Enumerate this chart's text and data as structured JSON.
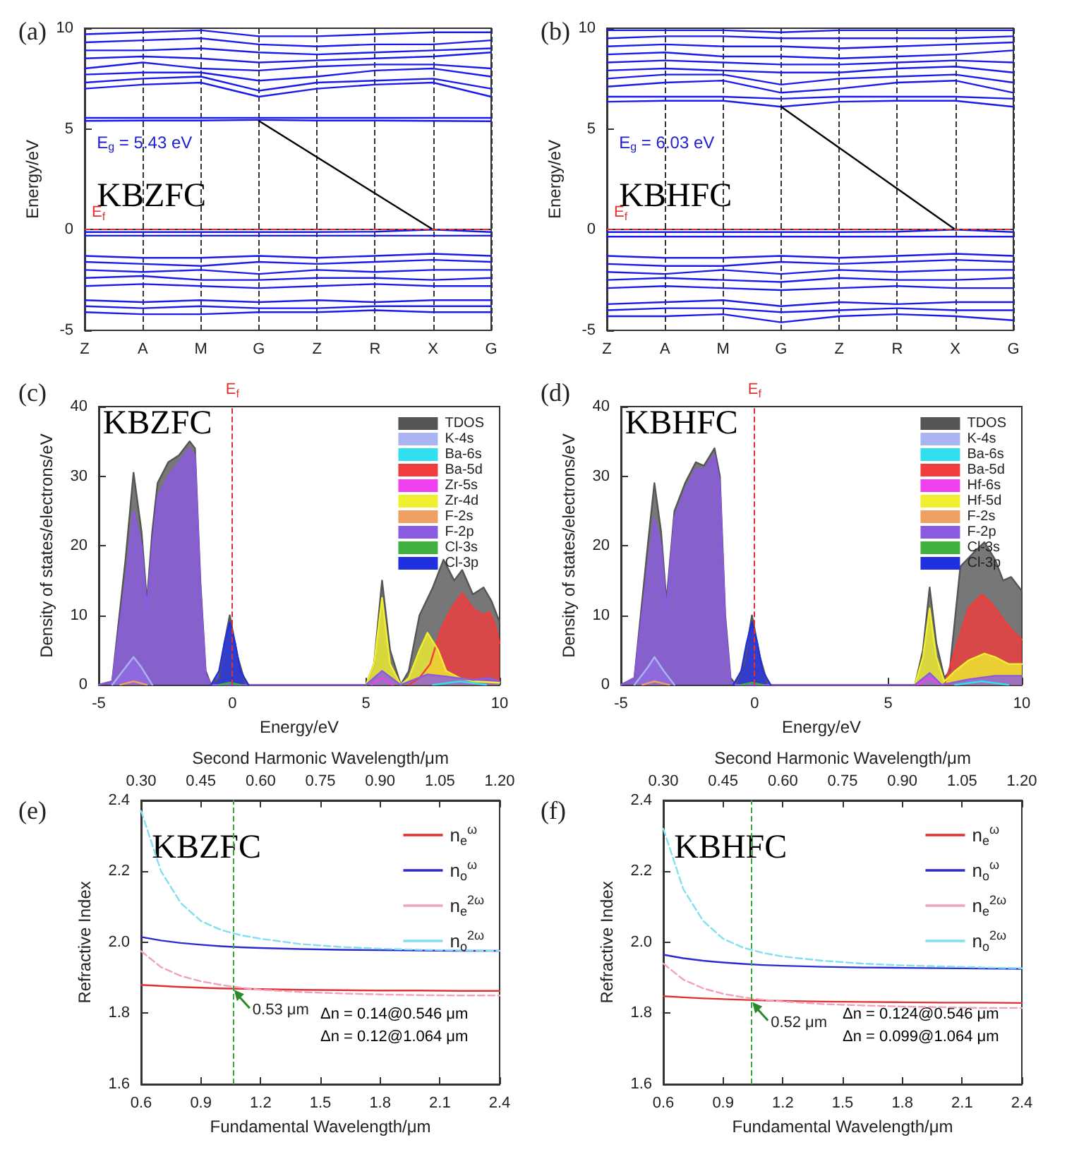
{
  "chart_data": [
    {
      "type": "line",
      "title": "(a)",
      "ylabel": "Energy/eV",
      "ylim": [
        -5,
        10
      ],
      "yticks": [
        -5,
        0,
        5,
        10
      ],
      "categories": [
        "Z",
        "A",
        "M",
        "G",
        "Z",
        "R",
        "X",
        "G"
      ],
      "grid": "x",
      "legend": false,
      "marker": "none",
      "annotations": [
        "E$_{g}$ = 5.43 eV",
        "KBZFC"
      ],
      "ref_lines": [
        {
          "axis": "y",
          "value": 0,
          "label": "E$_{f}$",
          "color": "#e03030",
          "line_style": "dashed"
        }
      ],
      "series": [
        {
          "color": "#1a1aee",
          "values": [
            5.4,
            5.42,
            5.42,
            5.45,
            5.42,
            5.42,
            5.4,
            5.38
          ]
        },
        {
          "color": "#1a1aee",
          "values": [
            5.55,
            5.55,
            5.55,
            5.55,
            5.55,
            5.55,
            5.55,
            5.55
          ]
        },
        {
          "color": "#1a1aee",
          "values": [
            7.0,
            7.2,
            7.3,
            6.6,
            7.0,
            7.2,
            7.3,
            6.6
          ]
        },
        {
          "color": "#1a1aee",
          "values": [
            7.3,
            7.5,
            7.6,
            6.9,
            7.3,
            7.4,
            7.5,
            7.0
          ]
        },
        {
          "color": "#1a1aee",
          "values": [
            7.7,
            7.8,
            7.8,
            7.4,
            7.6,
            7.9,
            8.0,
            7.6
          ]
        },
        {
          "color": "#1a1aee",
          "values": [
            8.0,
            8.3,
            8.0,
            7.9,
            8.1,
            8.2,
            8.2,
            8.0
          ]
        },
        {
          "color": "#1a1aee",
          "values": [
            8.5,
            8.6,
            8.5,
            8.3,
            8.4,
            8.5,
            8.6,
            8.8
          ]
        },
        {
          "color": "#1a1aee",
          "values": [
            8.9,
            8.9,
            9.0,
            8.8,
            8.7,
            8.8,
            8.9,
            9.0
          ]
        },
        {
          "color": "#1a1aee",
          "values": [
            9.3,
            9.4,
            9.5,
            9.2,
            9.1,
            9.2,
            9.2,
            9.4
          ]
        },
        {
          "color": "#1a1aee",
          "values": [
            9.7,
            9.8,
            9.9,
            9.6,
            9.6,
            9.7,
            9.8,
            9.8
          ]
        },
        {
          "color": "#1a1aee",
          "values": [
            -0.12,
            -0.12,
            -0.12,
            -0.12,
            -0.12,
            -0.1,
            0,
            -0.12
          ]
        },
        {
          "color": "#1a1aee",
          "values": [
            -0.3,
            -0.3,
            -0.3,
            -0.3,
            -0.3,
            -0.3,
            -0.3,
            -0.3
          ]
        },
        {
          "color": "#1a1aee",
          "values": [
            -1.3,
            -1.4,
            -1.4,
            -1.3,
            -1.4,
            -1.3,
            -1.2,
            -1.3
          ]
        },
        {
          "color": "#1a1aee",
          "values": [
            -1.6,
            -1.7,
            -1.8,
            -1.6,
            -1.7,
            -1.6,
            -1.5,
            -1.6
          ]
        },
        {
          "color": "#1a1aee",
          "values": [
            -2.0,
            -2.1,
            -2.0,
            -2.2,
            -2.0,
            -2.1,
            -2.0,
            -2.0
          ]
        },
        {
          "color": "#1a1aee",
          "values": [
            -2.4,
            -2.3,
            -2.5,
            -2.5,
            -2.4,
            -2.4,
            -2.5,
            -2.4
          ]
        },
        {
          "color": "#1a1aee",
          "values": [
            -2.8,
            -2.7,
            -2.8,
            -2.9,
            -2.8,
            -2.7,
            -2.8,
            -2.8
          ]
        },
        {
          "color": "#1a1aee",
          "values": [
            -3.5,
            -3.6,
            -3.5,
            -3.6,
            -3.5,
            -3.6,
            -3.5,
            -3.5
          ]
        },
        {
          "color": "#1a1aee",
          "values": [
            -3.8,
            -3.9,
            -3.8,
            -3.9,
            -3.9,
            -3.8,
            -3.8,
            -3.8
          ]
        },
        {
          "color": "#1a1aee",
          "values": [
            -4.1,
            -4.2,
            -4.2,
            -4.1,
            -4.1,
            -4.0,
            -4.1,
            -4.1
          ]
        },
        {
          "color": "#000000",
          "x": [
            "G",
            "X"
          ],
          "values": [
            5.4,
            0
          ]
        }
      ]
    },
    {
      "type": "line",
      "title": "(b)",
      "ylabel": "Energy/eV",
      "ylim": [
        -5,
        10
      ],
      "yticks": [
        -5,
        0,
        5,
        10
      ],
      "categories": [
        "Z",
        "A",
        "M",
        "G",
        "Z",
        "R",
        "X",
        "G"
      ],
      "grid": "x",
      "legend": false,
      "marker": "none",
      "annotations": [
        "E$_{g}$ = 6.03 eV",
        "KBHFC"
      ],
      "ref_lines": [
        {
          "axis": "y",
          "value": 0,
          "label": "E$_{f}$",
          "color": "#e03030",
          "line_style": "dashed"
        }
      ],
      "series": [
        {
          "color": "#1a1aee",
          "values": [
            6.35,
            6.4,
            6.4,
            6.1,
            6.35,
            6.4,
            6.4,
            6.1
          ]
        },
        {
          "color": "#1a1aee",
          "values": [
            6.6,
            6.6,
            6.6,
            6.5,
            6.6,
            6.6,
            6.6,
            6.5
          ]
        },
        {
          "color": "#1a1aee",
          "values": [
            7.1,
            7.3,
            7.4,
            6.8,
            7.0,
            7.3,
            7.4,
            6.8
          ]
        },
        {
          "color": "#1a1aee",
          "values": [
            7.5,
            7.7,
            7.7,
            7.2,
            7.5,
            7.6,
            7.7,
            7.3
          ]
        },
        {
          "color": "#1a1aee",
          "values": [
            7.9,
            8.0,
            7.9,
            7.8,
            7.8,
            8.0,
            8.1,
            7.8
          ]
        },
        {
          "color": "#1a1aee",
          "values": [
            8.3,
            8.4,
            8.3,
            8.2,
            8.2,
            8.3,
            8.4,
            8.3
          ]
        },
        {
          "color": "#1a1aee",
          "values": [
            8.7,
            8.8,
            8.6,
            8.6,
            8.5,
            8.6,
            8.7,
            8.9
          ]
        },
        {
          "color": "#1a1aee",
          "values": [
            9.1,
            9.2,
            9.1,
            9.1,
            9.0,
            9.1,
            9.2,
            9.3
          ]
        },
        {
          "color": "#1a1aee",
          "values": [
            9.5,
            9.6,
            9.6,
            9.5,
            9.5,
            9.5,
            9.5,
            9.6
          ]
        },
        {
          "color": "#1a1aee",
          "values": [
            9.9,
            9.9,
            9.9,
            9.8,
            9.9,
            9.9,
            9.9,
            9.9
          ]
        },
        {
          "color": "#1a1aee",
          "values": [
            -0.12,
            -0.12,
            -0.12,
            -0.12,
            -0.12,
            -0.1,
            0,
            -0.12
          ]
        },
        {
          "color": "#1a1aee",
          "values": [
            -0.35,
            -0.35,
            -0.35,
            -0.35,
            -0.35,
            -0.35,
            -0.35,
            -0.35
          ]
        },
        {
          "color": "#1a1aee",
          "values": [
            -1.3,
            -1.4,
            -1.4,
            -1.3,
            -1.4,
            -1.3,
            -1.2,
            -1.3
          ]
        },
        {
          "color": "#1a1aee",
          "values": [
            -1.7,
            -1.8,
            -1.8,
            -1.6,
            -1.7,
            -1.6,
            -1.5,
            -1.6
          ]
        },
        {
          "color": "#1a1aee",
          "values": [
            -2.1,
            -2.2,
            -2.0,
            -2.2,
            -2.0,
            -2.1,
            -2.0,
            -2.0
          ]
        },
        {
          "color": "#1a1aee",
          "values": [
            -2.5,
            -2.4,
            -2.5,
            -2.6,
            -2.4,
            -2.5,
            -2.5,
            -2.4
          ]
        },
        {
          "color": "#1a1aee",
          "values": [
            -2.9,
            -2.8,
            -2.9,
            -3.0,
            -2.9,
            -2.8,
            -2.9,
            -2.9
          ]
        },
        {
          "color": "#1a1aee",
          "values": [
            -3.7,
            -3.6,
            -3.5,
            -3.8,
            -3.6,
            -3.7,
            -3.6,
            -3.6
          ]
        },
        {
          "color": "#1a1aee",
          "values": [
            -4.0,
            -3.9,
            -3.9,
            -4.1,
            -4.0,
            -3.9,
            -4.0,
            -4.0
          ]
        },
        {
          "color": "#1a1aee",
          "values": [
            -4.3,
            -4.3,
            -4.2,
            -4.6,
            -4.3,
            -4.2,
            -4.3,
            -4.5
          ]
        },
        {
          "color": "#000000",
          "x": [
            "G",
            "X"
          ],
          "values": [
            6.1,
            0
          ]
        }
      ]
    },
    {
      "type": "area",
      "title": "(c)",
      "xlabel": "Energy/eV",
      "ylabel": "Density of states/electrons/eV",
      "xlim": [
        -5,
        10
      ],
      "xticks": [
        -5,
        0,
        5,
        10
      ],
      "ylim": [
        0,
        40
      ],
      "yticks": [
        0,
        10,
        20,
        30,
        40
      ],
      "grid": false,
      "legend": "top right",
      "marker": "none",
      "annotations": [
        "KBZFC"
      ],
      "ref_lines": [
        {
          "axis": "x",
          "value": 0,
          "label": "E$_{f}$",
          "color": "#e03030",
          "line_style": "dashed"
        }
      ],
      "series": [
        {
          "name": "TDOS",
          "color": "#555555",
          "x": [
            -5,
            -4.5,
            -4,
            -3.7,
            -3.4,
            -3.2,
            -3,
            -2.8,
            -2.4,
            -2,
            -1.6,
            -1.4,
            -1.2,
            -1,
            -0.8,
            -0.5,
            -0.3,
            -0.1,
            0.2,
            0.5,
            5,
            5.3,
            5.6,
            5.9,
            6.3,
            6.6,
            7,
            7.5,
            7.9,
            8.3,
            8.6,
            9,
            9.4,
            9.7,
            10
          ],
          "values": [
            0,
            0.5,
            18,
            30.5,
            22,
            12,
            22,
            29,
            32,
            33,
            35,
            34,
            15,
            2,
            0,
            1,
            6,
            10,
            4,
            0,
            0,
            3,
            15,
            5,
            0,
            2,
            10,
            14,
            18,
            15,
            16.5,
            13,
            14,
            12,
            9
          ]
        },
        {
          "name": "K-4s",
          "color": "#aab4f0",
          "x": [
            -4.5,
            -4,
            -3.7,
            -3.4,
            -3
          ],
          "values": [
            0,
            2.5,
            4,
            2.5,
            0
          ]
        },
        {
          "name": "Ba-6s",
          "color": "#30e0f0",
          "x": [
            7.5,
            8.5,
            9.5
          ],
          "values": [
            0,
            0.5,
            0
          ]
        },
        {
          "name": "Ba-5d",
          "color": "#f03c3c",
          "x": [
            6.6,
            7,
            7.4,
            7.8,
            8.2,
            8.6,
            9,
            9.4,
            9.6,
            9.8,
            10
          ],
          "values": [
            0,
            1,
            3,
            8,
            11,
            13.2,
            11,
            10,
            10.5,
            9,
            6
          ]
        },
        {
          "name": "Zr-5s",
          "color": "#f040f0",
          "x": [
            5.2,
            5.6,
            6
          ],
          "values": [
            0,
            1,
            0
          ]
        },
        {
          "name": "Zr-4d",
          "color": "#f0f030",
          "x": [
            5,
            5.3,
            5.6,
            5.9,
            6.3,
            6.6,
            7,
            7.3,
            7.7,
            8,
            8.5,
            9,
            10
          ],
          "values": [
            0,
            3,
            12.5,
            3,
            0,
            1,
            5,
            7.5,
            5,
            2,
            1,
            0.5,
            0.3
          ]
        },
        {
          "name": "F-2s",
          "color": "#f0a060",
          "x": [
            -4.2,
            -3.7,
            -3.2
          ],
          "values": [
            0,
            0.5,
            0
          ]
        },
        {
          "name": "F-2p",
          "color": "#8a5ae0",
          "x": [
            -5,
            -4.5,
            -4,
            -3.7,
            -3.4,
            -3.2,
            -3,
            -2.8,
            -2.4,
            -2,
            -1.6,
            -1.4,
            -1.2,
            -1,
            -0.8,
            5,
            5.6,
            6.3,
            7.3,
            8,
            9,
            9.6,
            10
          ],
          "values": [
            0,
            0.5,
            15,
            25,
            20,
            11,
            20,
            27,
            30,
            32,
            34,
            33,
            14,
            1.5,
            0,
            0,
            2,
            0,
            1.5,
            1.2,
            0.7,
            1,
            0.5
          ]
        },
        {
          "name": "Cl-3s",
          "color": "#40b040",
          "x": [
            -0.5,
            -0.1,
            0.3
          ],
          "values": [
            0,
            0.3,
            0
          ]
        },
        {
          "name": "Cl-3p",
          "color": "#2030e0",
          "x": [
            -0.8,
            -0.5,
            -0.3,
            -0.1,
            0.1,
            0.3,
            0.6
          ],
          "values": [
            0,
            2,
            6,
            9,
            6,
            2,
            0
          ]
        }
      ]
    },
    {
      "type": "area",
      "title": "(d)",
      "xlabel": "Energy/eV",
      "ylabel": "Density of states/electrons/eV",
      "xlim": [
        -5,
        10
      ],
      "xticks": [
        -5,
        0,
        5,
        10
      ],
      "ylim": [
        0,
        40
      ],
      "yticks": [
        0,
        10,
        20,
        30,
        40
      ],
      "grid": false,
      "legend": "top right",
      "marker": "none",
      "annotations": [
        "KBHFC"
      ],
      "ref_lines": [
        {
          "axis": "x",
          "value": 0,
          "label": "E$_{f}$",
          "color": "#e03030",
          "line_style": "dashed"
        }
      ],
      "series": [
        {
          "name": "TDOS",
          "color": "#555555",
          "x": [
            -5,
            -4.5,
            -4,
            -3.75,
            -3.5,
            -3.3,
            -3,
            -2.6,
            -2.2,
            -1.9,
            -1.5,
            -1.3,
            -1.1,
            -0.9,
            -0.7,
            -0.4,
            -0.1,
            0.2,
            0.5,
            6,
            6.3,
            6.55,
            6.8,
            7.1,
            7.3,
            7.7,
            8.2,
            8.6,
            9,
            9.3,
            9.6,
            10
          ],
          "values": [
            0,
            1,
            20,
            29,
            22,
            12,
            25,
            29,
            32,
            31.5,
            34,
            30,
            10,
            1,
            0,
            3,
            10,
            4,
            0,
            0,
            5,
            14,
            6,
            1,
            2,
            17,
            19,
            20.5,
            18,
            15,
            15.5,
            13.5
          ]
        },
        {
          "name": "K-4s",
          "color": "#aab4f0",
          "x": [
            -4.5,
            -4,
            -3.75,
            -3.4,
            -3
          ],
          "values": [
            0,
            2.5,
            4,
            2,
            0
          ]
        },
        {
          "name": "Ba-6s",
          "color": "#30e0f0",
          "x": [
            7.5,
            8.5,
            9.5
          ],
          "values": [
            0,
            0.5,
            0
          ]
        },
        {
          "name": "Ba-5d",
          "color": "#f03c3c",
          "x": [
            7.1,
            7.5,
            8,
            8.5,
            8.8,
            9.2,
            9.6,
            10
          ],
          "values": [
            0,
            5,
            11,
            13,
            12,
            10,
            8,
            6.5
          ]
        },
        {
          "name": "Hf-6s",
          "color": "#f040f0",
          "x": [
            6.1,
            6.55,
            7
          ],
          "values": [
            0,
            1,
            0
          ]
        },
        {
          "name": "Hf-5d",
          "color": "#f0f030",
          "x": [
            6,
            6.3,
            6.55,
            6.8,
            7.1,
            7.5,
            8,
            8.6,
            9,
            9.5,
            10
          ],
          "values": [
            0,
            4,
            11,
            4,
            0.5,
            2,
            3.5,
            4.5,
            4,
            3,
            3
          ]
        },
        {
          "name": "F-2s",
          "color": "#f0a060",
          "x": [
            -4.2,
            -3.75,
            -3.2
          ],
          "values": [
            0,
            0.5,
            0
          ]
        },
        {
          "name": "F-2p",
          "color": "#8a5ae0",
          "x": [
            -5,
            -4.5,
            -4,
            -3.75,
            -3.5,
            -3.3,
            -3,
            -2.6,
            -2.2,
            -1.9,
            -1.5,
            -1.3,
            -1.1,
            -0.9,
            -0.7,
            6,
            6.55,
            7,
            8,
            9,
            10
          ],
          "values": [
            0,
            1,
            17,
            24,
            20,
            11,
            24,
            28,
            31,
            31,
            33,
            29,
            9,
            0.5,
            0,
            0,
            1.7,
            0,
            0.8,
            1.3,
            1.3
          ]
        },
        {
          "name": "Cl-3s",
          "color": "#40b040",
          "x": [
            -0.5,
            -0.1,
            0.3
          ],
          "values": [
            0,
            0.3,
            0
          ]
        },
        {
          "name": "Cl-3p",
          "color": "#2030e0",
          "x": [
            -0.8,
            -0.5,
            -0.3,
            -0.1,
            0.1,
            0.3,
            0.6
          ],
          "values": [
            0,
            2,
            6,
            9,
            6,
            2,
            0
          ]
        }
      ]
    },
    {
      "type": "line",
      "title": "(e)",
      "xlabel": "Fundamental Wavelength/μm",
      "ylabel": "Refractive Index",
      "x2label": "Second Harmonic Wavelength/μm",
      "xlim": [
        0.6,
        2.4
      ],
      "xticks": [
        0.6,
        0.9,
        1.2,
        1.5,
        1.8,
        2.1,
        2.4
      ],
      "x2lim": [
        0.3,
        1.2
      ],
      "x2ticks": [
        {
          "value": 0.3,
          "label": "0.30"
        },
        {
          "value": 0.45,
          "label": "0.45"
        },
        {
          "value": 0.6,
          "label": "0.60"
        },
        {
          "value": 0.75,
          "label": "0.75"
        },
        {
          "value": 0.9,
          "label": "0.90"
        },
        {
          "value": 1.05,
          "label": "1.05"
        },
        {
          "value": 1.2,
          "label": "1.20"
        }
      ],
      "ylim": [
        1.6,
        2.4
      ],
      "yticks": [
        1.6,
        1.8,
        {
          "value": 2,
          "label": "2.0"
        },
        2.2,
        2.4
      ],
      "grid": false,
      "legend": "top right",
      "marker": "none",
      "x": [
        0.6,
        0.7,
        0.8,
        0.9,
        1.0,
        1.1,
        1.2,
        1.4,
        1.6,
        1.8,
        2.0,
        2.2,
        2.4
      ],
      "annotations": [
        "KBZFC",
        {
          "text": "0.53 μm",
          "x": 1.06,
          "y": 1.87
        },
        "Δn = 0.14@0.546 μm",
        "Δn = 0.12@1.064 μm"
      ],
      "ref_lines": [
        {
          "axis": "x",
          "value": 1.06,
          "color": "#3aa83a",
          "line_style": "dashed"
        }
      ],
      "series": [
        {
          "name": "n$_{e}$$^{ω}$",
          "color": "#e03030",
          "line_style": "solid",
          "values": [
            1.88,
            1.877,
            1.874,
            1.872,
            1.87,
            1.869,
            1.868,
            1.866,
            1.865,
            1.864,
            1.864,
            1.863,
            1.863
          ]
        },
        {
          "name": "n$_{o}$$^{ω}$",
          "color": "#2a2ad0",
          "line_style": "solid",
          "values": [
            2.015,
            2.005,
            1.998,
            1.993,
            1.989,
            1.986,
            1.984,
            1.981,
            1.979,
            1.978,
            1.977,
            1.976,
            1.976
          ]
        },
        {
          "name": "n$_{e}$$^{2ω}$",
          "color": "#f4a0c0",
          "line_style": "dashed",
          "values": [
            1.975,
            1.93,
            1.905,
            1.89,
            1.88,
            1.872,
            1.866,
            1.86,
            1.856,
            1.853,
            1.851,
            1.85,
            1.85
          ]
        },
        {
          "name": "n$_{o}$$^{2ω}$",
          "color": "#80e0f0",
          "line_style": "dashed",
          "values": [
            2.37,
            2.2,
            2.11,
            2.06,
            2.035,
            2.02,
            2.01,
            1.995,
            1.987,
            1.982,
            1.979,
            1.977,
            1.976
          ]
        }
      ]
    },
    {
      "type": "line",
      "title": "(f)",
      "xlabel": "Fundamental Wavelength/μm",
      "ylabel": "Refractive Index",
      "x2label": "Second Harmonic Wavelength/μm",
      "xlim": [
        0.6,
        2.4
      ],
      "xticks": [
        0.6,
        0.9,
        1.2,
        1.5,
        1.8,
        2.1,
        2.4
      ],
      "x2lim": [
        0.3,
        1.2
      ],
      "x2ticks": [
        {
          "value": 0.3,
          "label": "0.30"
        },
        {
          "value": 0.45,
          "label": "0.45"
        },
        {
          "value": 0.6,
          "label": "0.60"
        },
        {
          "value": 0.75,
          "label": "0.75"
        },
        {
          "value": 0.9,
          "label": "0.90"
        },
        {
          "value": 1.05,
          "label": "1.05"
        },
        {
          "value": 1.2,
          "label": "1.20"
        }
      ],
      "ylim": [
        1.6,
        2.4
      ],
      "yticks": [
        1.6,
        1.8,
        {
          "value": 2,
          "label": "2.0"
        },
        2.2,
        2.4
      ],
      "grid": false,
      "legend": "top right",
      "marker": "none",
      "x": [
        0.6,
        0.7,
        0.8,
        0.9,
        1.0,
        1.1,
        1.2,
        1.4,
        1.6,
        1.8,
        2.0,
        2.2,
        2.4
      ],
      "annotations": [
        "KBHFC",
        {
          "text": "0.52 μm",
          "x": 1.04,
          "y": 1.835
        },
        "Δn = 0.124@0.546 μm",
        "Δn = 0.099@1.064 μm"
      ],
      "ref_lines": [
        {
          "axis": "x",
          "value": 1.04,
          "color": "#3aa83a",
          "line_style": "dashed"
        }
      ],
      "series": [
        {
          "name": "n$_{e}$$^{ω}$",
          "color": "#e03030",
          "line_style": "solid",
          "values": [
            1.848,
            1.845,
            1.842,
            1.84,
            1.838,
            1.836,
            1.835,
            1.833,
            1.832,
            1.831,
            1.83,
            1.83,
            1.829
          ]
        },
        {
          "name": "n$_{o}$$^{ω}$",
          "color": "#2a2ad0",
          "line_style": "solid",
          "values": [
            1.965,
            1.955,
            1.948,
            1.943,
            1.939,
            1.936,
            1.934,
            1.931,
            1.929,
            1.928,
            1.927,
            1.926,
            1.925
          ]
        },
        {
          "name": "n$_{e}$$^{2ω}$",
          "color": "#f4a0c0",
          "line_style": "dashed",
          "values": [
            1.94,
            1.895,
            1.87,
            1.855,
            1.845,
            1.838,
            1.833,
            1.826,
            1.822,
            1.819,
            1.817,
            1.815,
            1.815
          ]
        },
        {
          "name": "n$_{o}$$^{2ω}$",
          "color": "#80e0f0",
          "line_style": "dashed",
          "values": [
            2.32,
            2.15,
            2.06,
            2.01,
            1.985,
            1.97,
            1.96,
            1.948,
            1.94,
            1.935,
            1.932,
            1.929,
            1.927
          ]
        }
      ]
    }
  ]
}
